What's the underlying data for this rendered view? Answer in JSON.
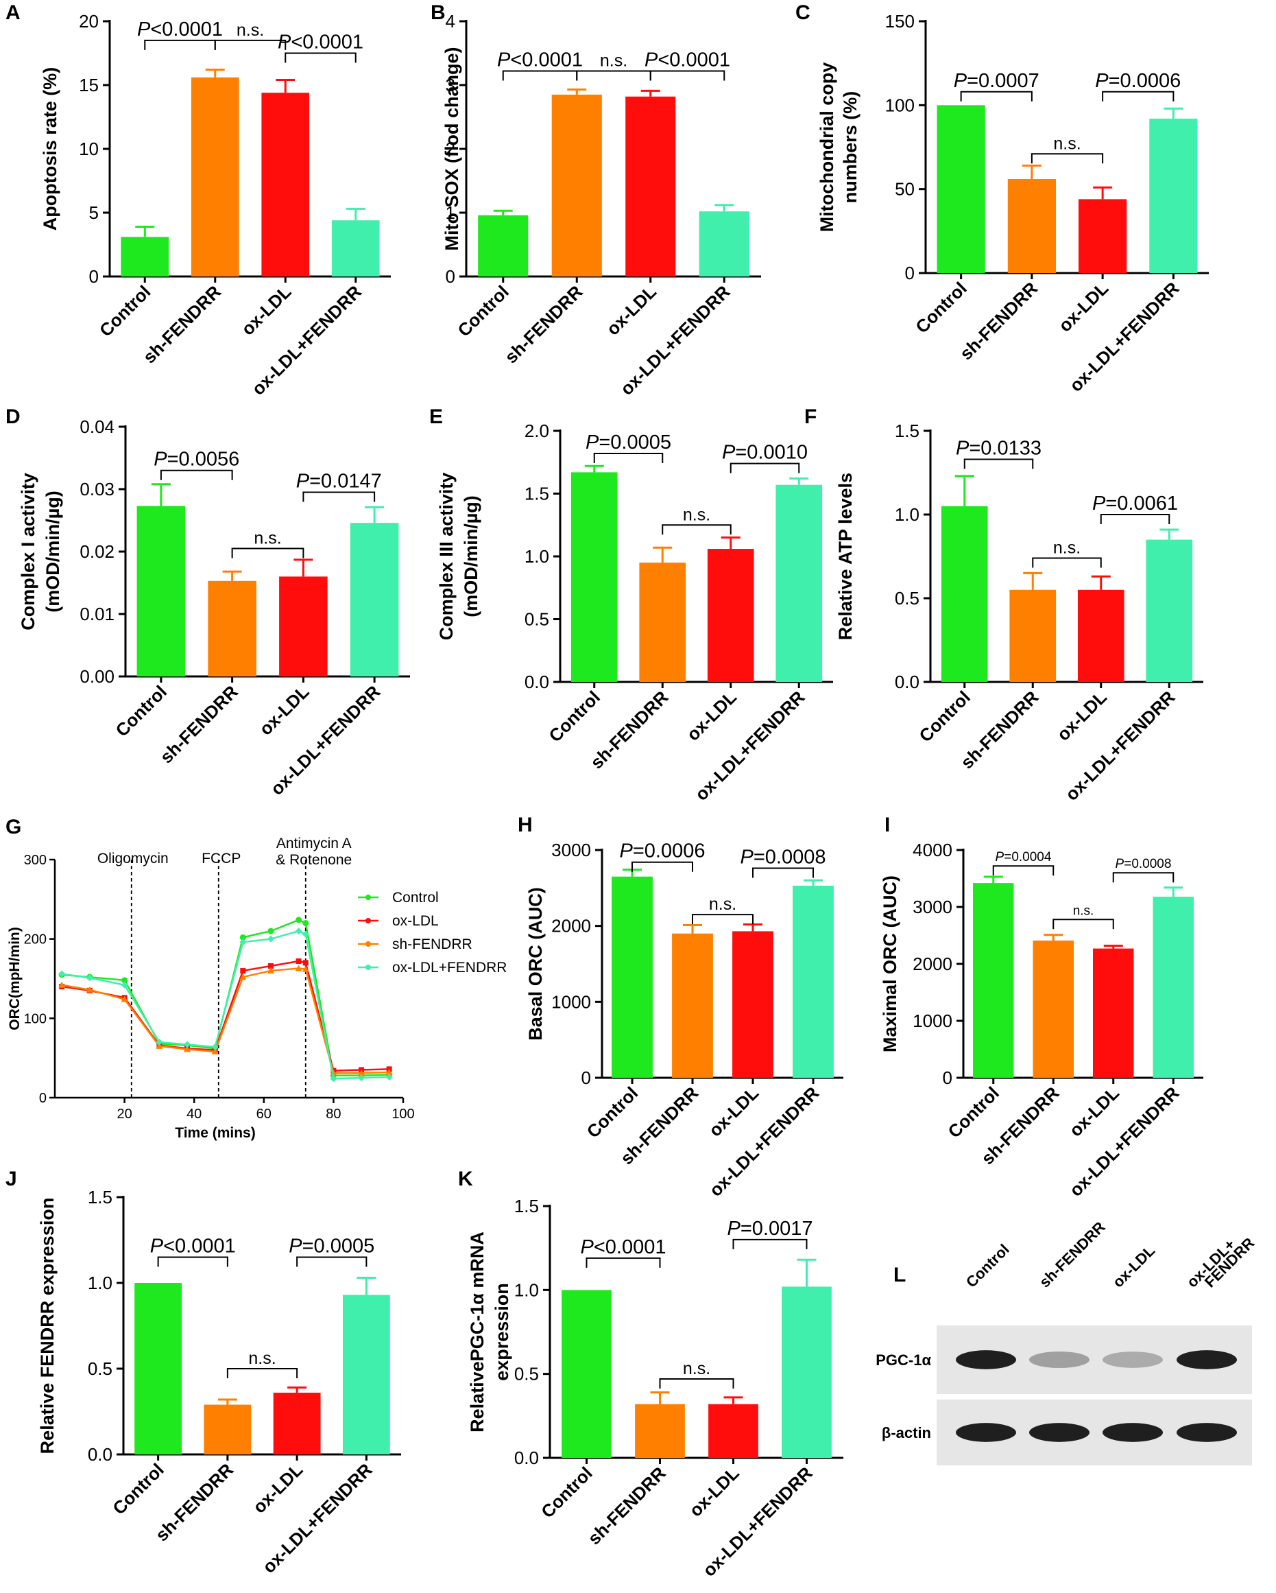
{
  "figure": {
    "categories": [
      "Control",
      "sh-FENDRR",
      "ox-LDL",
      "ox-LDL+FENDRR"
    ],
    "colors": [
      "#1ee81e",
      "#ff7f00",
      "#ff0d0d",
      "#40efac"
    ]
  },
  "chart_data": [
    {
      "id": "A",
      "panel_letter": "A",
      "type": "bar",
      "ylabel": "Apoptosis rate (%)",
      "ylim": [
        0,
        20
      ],
      "yticks": [
        0,
        5,
        10,
        15,
        20
      ],
      "ytick_labels": [
        "0",
        "5",
        "10",
        "15",
        "20"
      ],
      "categories": [
        "Control",
        "sh-FENDRR",
        "ox-LDL",
        "ox-LDL+FENDRR"
      ],
      "values": [
        3.1,
        15.6,
        14.4,
        4.4
      ],
      "errors": [
        0.8,
        0.6,
        1.0,
        0.9
      ],
      "comparisons": [
        {
          "from": 0,
          "to": 1,
          "level": 18.5,
          "label": "<0.0001",
          "italic_p": true
        },
        {
          "from": 1,
          "to": 2,
          "level": 18.5,
          "label": "n.s.",
          "italic_p": false
        },
        {
          "from": 2,
          "to": 3,
          "level": 17.5,
          "label": "<0.0001",
          "italic_p": true
        }
      ]
    },
    {
      "id": "B",
      "panel_letter": "B",
      "type": "bar",
      "ylabel": "Mito SOX (flod change)",
      "ylim": [
        0,
        4
      ],
      "yticks": [
        0,
        1,
        2,
        3,
        4
      ],
      "ytick_labels": [
        "0",
        "1",
        "2",
        "3",
        "4"
      ],
      "categories": [
        "Control",
        "sh-FENDRR",
        "ox-LDL",
        "ox-LDL+FENDRR"
      ],
      "values": [
        0.96,
        2.85,
        2.82,
        1.02
      ],
      "errors": [
        0.07,
        0.08,
        0.09,
        0.1
      ],
      "comparisons": [
        {
          "from": 0,
          "to": 1,
          "level": 3.22,
          "label": "<0.0001",
          "italic_p": true
        },
        {
          "from": 1,
          "to": 2,
          "level": 3.22,
          "label": "n.s.",
          "italic_p": false
        },
        {
          "from": 2,
          "to": 3,
          "level": 3.22,
          "label": "<0.0001",
          "italic_p": true
        }
      ]
    },
    {
      "id": "C",
      "panel_letter": "C",
      "type": "bar",
      "ylabel": "Mitochondrial copy numbers (%)",
      "ylabel_lines": [
        "Mitochondrial copy",
        "numbers (%)"
      ],
      "ylim": [
        0,
        150
      ],
      "yticks": [
        0,
        50,
        100,
        150
      ],
      "ytick_labels": [
        "0",
        "50",
        "100",
        "150"
      ],
      "categories": [
        "Control",
        "sh-FENDRR",
        "ox-LDL",
        "ox-LDL+FENDRR"
      ],
      "values": [
        100,
        56,
        44,
        92
      ],
      "errors": [
        0,
        8,
        7,
        6
      ],
      "comparisons": [
        {
          "from": 0,
          "to": 1,
          "level": 108,
          "label": "=0.0007",
          "italic_p": true
        },
        {
          "from": 1,
          "to": 2,
          "level": 71,
          "label": "n.s.",
          "italic_p": false
        },
        {
          "from": 2,
          "to": 3,
          "level": 108,
          "label": "=0.0006",
          "italic_p": true
        }
      ]
    },
    {
      "id": "D",
      "panel_letter": "D",
      "type": "bar",
      "ylabel": "Complex I activity (mOD/min/µg)",
      "ylabel_lines": [
        "Complex I activity",
        "(mOD/min/µg)"
      ],
      "ylim": [
        0,
        0.04
      ],
      "yticks": [
        0,
        0.01,
        0.02,
        0.03,
        0.04
      ],
      "ytick_labels": [
        "0.00",
        "0.01",
        "0.02",
        "0.03",
        "0.04"
      ],
      "categories": [
        "Control",
        "sh-FENDRR",
        "ox-LDL",
        "ox-LDL+FENDRR"
      ],
      "values": [
        0.0273,
        0.0153,
        0.016,
        0.0246
      ],
      "errors": [
        0.0035,
        0.0015,
        0.0027,
        0.0025
      ],
      "comparisons": [
        {
          "from": 0,
          "to": 1,
          "level": 0.033,
          "label": "=0.0056",
          "italic_p": true
        },
        {
          "from": 1,
          "to": 2,
          "level": 0.0205,
          "label": "n.s.",
          "italic_p": false
        },
        {
          "from": 2,
          "to": 3,
          "level": 0.0295,
          "label": "=0.0147",
          "italic_p": true
        }
      ]
    },
    {
      "id": "E",
      "panel_letter": "E",
      "type": "bar",
      "ylabel": "Complex III activity (mOD/min/µg)",
      "ylabel_lines": [
        "Complex III activity",
        "(mOD/min/µg)"
      ],
      "ylim": [
        0,
        2.0
      ],
      "yticks": [
        0,
        0.5,
        1.0,
        1.5,
        2.0
      ],
      "ytick_labels": [
        "0.0",
        "0.5",
        "1.0",
        "1.5",
        "2.0"
      ],
      "categories": [
        "Control",
        "sh-FENDRR",
        "ox-LDL",
        "ox-LDL+FENDRR"
      ],
      "values": [
        1.67,
        0.95,
        1.06,
        1.57
      ],
      "errors": [
        0.05,
        0.12,
        0.09,
        0.05
      ],
      "comparisons": [
        {
          "from": 0,
          "to": 1,
          "level": 1.82,
          "label": "=0.0005",
          "italic_p": true
        },
        {
          "from": 1,
          "to": 2,
          "level": 1.25,
          "label": "n.s.",
          "italic_p": false
        },
        {
          "from": 2,
          "to": 3,
          "level": 1.74,
          "label": "=0.0010",
          "italic_p": true
        }
      ]
    },
    {
      "id": "F",
      "panel_letter": "F",
      "type": "bar",
      "ylabel": "Relative ATP levels",
      "ylim": [
        0,
        1.5
      ],
      "yticks": [
        0,
        0.5,
        1.0,
        1.5
      ],
      "ytick_labels": [
        "0.0",
        "0.5",
        "1.0",
        "1.5"
      ],
      "categories": [
        "Control",
        "sh-FENDRR",
        "ox-LDL",
        "ox-LDL+FENDRR"
      ],
      "values": [
        1.05,
        0.55,
        0.55,
        0.85
      ],
      "errors": [
        0.18,
        0.1,
        0.08,
        0.06
      ],
      "comparisons": [
        {
          "from": 0,
          "to": 1,
          "level": 1.33,
          "label": "=0.0133",
          "italic_p": true
        },
        {
          "from": 1,
          "to": 2,
          "level": 0.74,
          "label": "n.s.",
          "italic_p": false
        },
        {
          "from": 2,
          "to": 3,
          "level": 1.0,
          "label": "=0.0061",
          "italic_p": true
        }
      ]
    },
    {
      "id": "G",
      "panel_letter": "G",
      "type": "line",
      "xlabel": "Time (mins)",
      "ylabel": "ORC(mpH/min)",
      "xlim": [
        0,
        100
      ],
      "ylim": [
        0,
        300
      ],
      "xticks": [
        20,
        40,
        60,
        80,
        100
      ],
      "yticks": [
        0,
        100,
        200,
        300
      ],
      "x": [
        2,
        10,
        20,
        30,
        38,
        46,
        54,
        62,
        70,
        72,
        80,
        88,
        96
      ],
      "events": [
        {
          "x": 22,
          "label_lines": [
            "Oligomycin"
          ]
        },
        {
          "x": 47,
          "label_lines": [
            "FCCP"
          ]
        },
        {
          "x": 72,
          "label_lines": [
            "Antimycin A",
            "& Rotenone"
          ]
        }
      ],
      "series": [
        {
          "name": "Control",
          "color": "#1ee81e",
          "marker": "circle",
          "values": [
            155,
            152,
            148,
            68,
            66,
            62,
            202,
            210,
            224,
            220,
            28,
            28,
            29
          ]
        },
        {
          "name": "ox-LDL",
          "color": "#ff0d0d",
          "marker": "square",
          "values": [
            140,
            135,
            126,
            66,
            62,
            60,
            160,
            166,
            172,
            170,
            34,
            35,
            36
          ]
        },
        {
          "name": "sh-FENDRR",
          "color": "#ff7f00",
          "marker": "triangle",
          "values": [
            142,
            136,
            124,
            65,
            61,
            58,
            152,
            160,
            163,
            162,
            31,
            31,
            32
          ]
        },
        {
          "name": "ox-LDL+FENDRR",
          "color": "#40efac",
          "marker": "diamond",
          "values": [
            156,
            151,
            142,
            70,
            67,
            64,
            196,
            200,
            210,
            206,
            24,
            25,
            26
          ]
        }
      ]
    },
    {
      "id": "H",
      "panel_letter": "H",
      "type": "bar",
      "ylabel": "Basal ORC (AUC)",
      "ylim": [
        0,
        3000
      ],
      "yticks": [
        0,
        1000,
        2000,
        3000
      ],
      "ytick_labels": [
        "0",
        "1000",
        "2000",
        "3000"
      ],
      "categories": [
        "Control",
        "sh-FENDRR",
        "ox-LDL",
        "ox-LDL+FENDRR"
      ],
      "values": [
        2650,
        1900,
        1930,
        2530
      ],
      "errors": [
        90,
        110,
        90,
        70
      ],
      "comparisons": [
        {
          "from": 0,
          "to": 1,
          "level": 2840,
          "label": "=0.0006",
          "italic_p": true
        },
        {
          "from": 1,
          "to": 2,
          "level": 2150,
          "label": "n.s.",
          "italic_p": false
        },
        {
          "from": 2,
          "to": 3,
          "level": 2760,
          "label": "=0.0008",
          "italic_p": true
        }
      ]
    },
    {
      "id": "I",
      "panel_letter": "I",
      "type": "bar",
      "ylabel": "Maximal ORC (AUC)",
      "ylim": [
        0,
        4000
      ],
      "yticks": [
        0,
        1000,
        2000,
        3000,
        4000
      ],
      "ytick_labels": [
        "0",
        "1000",
        "2000",
        "3000",
        "4000"
      ],
      "categories": [
        "Control",
        "sh-FENDRR",
        "ox-LDL",
        "ox-LDL+FENDRR"
      ],
      "values": [
        3420,
        2410,
        2270,
        3180
      ],
      "errors": [
        110,
        100,
        50,
        160
      ],
      "comparisons": [
        {
          "from": 0,
          "to": 1,
          "level": 3720,
          "label": "=0.0004",
          "italic_p": true,
          "small": true
        },
        {
          "from": 1,
          "to": 2,
          "level": 2780,
          "label": "n.s.",
          "italic_p": false,
          "small": true
        },
        {
          "from": 2,
          "to": 3,
          "level": 3600,
          "label": "=0.0008",
          "italic_p": true,
          "small": true
        }
      ]
    },
    {
      "id": "J",
      "panel_letter": "J",
      "type": "bar",
      "ylabel": "Relative FENDRR expression",
      "ylim": [
        0,
        1.5
      ],
      "yticks": [
        0,
        0.5,
        1.0,
        1.5
      ],
      "ytick_labels": [
        "0.0",
        "0.5",
        "1.0",
        "1.5"
      ],
      "categories": [
        "Control",
        "sh-FENDRR",
        "ox-LDL",
        "ox-LDL+FENDRR"
      ],
      "values": [
        1.0,
        0.29,
        0.36,
        0.93
      ],
      "errors": [
        0,
        0.03,
        0.03,
        0.1
      ],
      "comparisons": [
        {
          "from": 0,
          "to": 1,
          "level": 1.15,
          "label": "<0.0001",
          "italic_p": true
        },
        {
          "from": 1,
          "to": 2,
          "level": 0.5,
          "label": "n.s.",
          "italic_p": false
        },
        {
          "from": 2,
          "to": 3,
          "level": 1.15,
          "label": "=0.0005",
          "italic_p": true
        }
      ]
    },
    {
      "id": "K",
      "panel_letter": "K",
      "type": "bar",
      "ylabel": "RelativePGC-1α mRNA expression",
      "ylabel_lines": [
        "RelativePGC-1α mRNA",
        "expression"
      ],
      "ylim": [
        0,
        1.5
      ],
      "yticks": [
        0,
        0.5,
        1.0,
        1.5
      ],
      "ytick_labels": [
        "0.0",
        "0.5",
        "1.0",
        "1.5"
      ],
      "categories": [
        "Control",
        "sh-FENDRR",
        "ox-LDL",
        "ox-LDL+FENDRR"
      ],
      "values": [
        1.0,
        0.32,
        0.32,
        1.02
      ],
      "errors": [
        0,
        0.07,
        0.04,
        0.16
      ],
      "comparisons": [
        {
          "from": 0,
          "to": 1,
          "level": 1.19,
          "label": "<0.0001",
          "italic_p": true
        },
        {
          "from": 1,
          "to": 2,
          "level": 0.47,
          "label": "n.s.",
          "italic_p": false
        },
        {
          "from": 2,
          "to": 3,
          "level": 1.3,
          "label": "=0.0017",
          "italic_p": true
        }
      ]
    }
  ],
  "western_blot": {
    "panel_letter": "L",
    "lanes": [
      "Control",
      "sh-FENDRR",
      "ox-LDL",
      "ox-LDL+FENDRR"
    ],
    "lane_label_lines": [
      [
        "Control"
      ],
      [
        "sh-FENDRR"
      ],
      [
        "ox-LDL"
      ],
      [
        "ox-LDL+",
        "FENDRR"
      ]
    ],
    "bands": [
      {
        "name": "PGC-1α",
        "intensities": [
          0.95,
          0.35,
          0.3,
          0.95
        ]
      },
      {
        "name": "β-actin",
        "intensities": [
          0.95,
          0.95,
          0.95,
          0.95
        ]
      }
    ]
  }
}
